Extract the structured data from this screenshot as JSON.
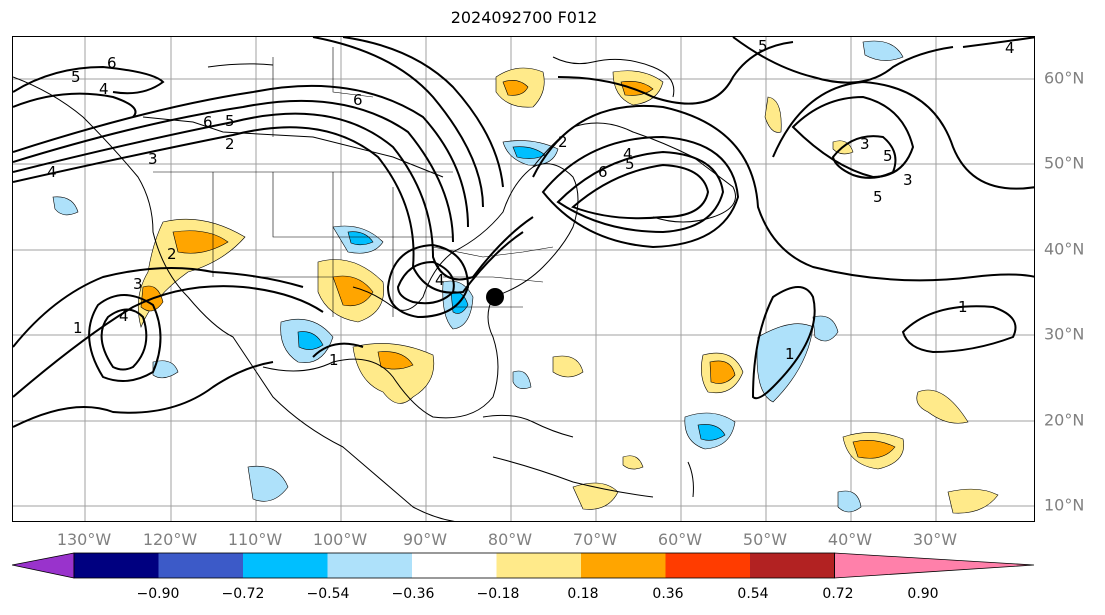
{
  "title": "2024092700 F012",
  "longitude_labels": [
    "130°W",
    "120°W",
    "110°W",
    "100°W",
    "90°W",
    "80°W",
    "70°W",
    "60°W",
    "50°W",
    "40°W",
    "30°W"
  ],
  "latitude_labels": [
    "60°N",
    "50°N",
    "40°N",
    "30°N",
    "20°N",
    "10°N"
  ],
  "colorbar": {
    "colors": [
      "#9933cc",
      "#000080",
      "#3c5ac8",
      "#00bfff",
      "#aee1fa",
      "#ffffff",
      "#ffea8a",
      "#ffa500",
      "#ff3c00",
      "#b22222",
      "#ff80aa"
    ],
    "ticks": [
      "−0.90",
      "−0.72",
      "−0.54",
      "−0.36",
      "−0.18",
      "0.18",
      "0.36",
      "0.54",
      "0.72",
      "0.90"
    ]
  },
  "contour_labels": [
    "6",
    "5",
    "4",
    "5",
    "6",
    "2",
    "3",
    "4",
    "2",
    "3",
    "4",
    "1",
    "1",
    "5",
    "3",
    "5",
    "6",
    "5",
    "4",
    "2",
    "6",
    "4",
    "5",
    "3",
    "1",
    "1",
    "4"
  ],
  "storm_marker": "black-dot"
}
